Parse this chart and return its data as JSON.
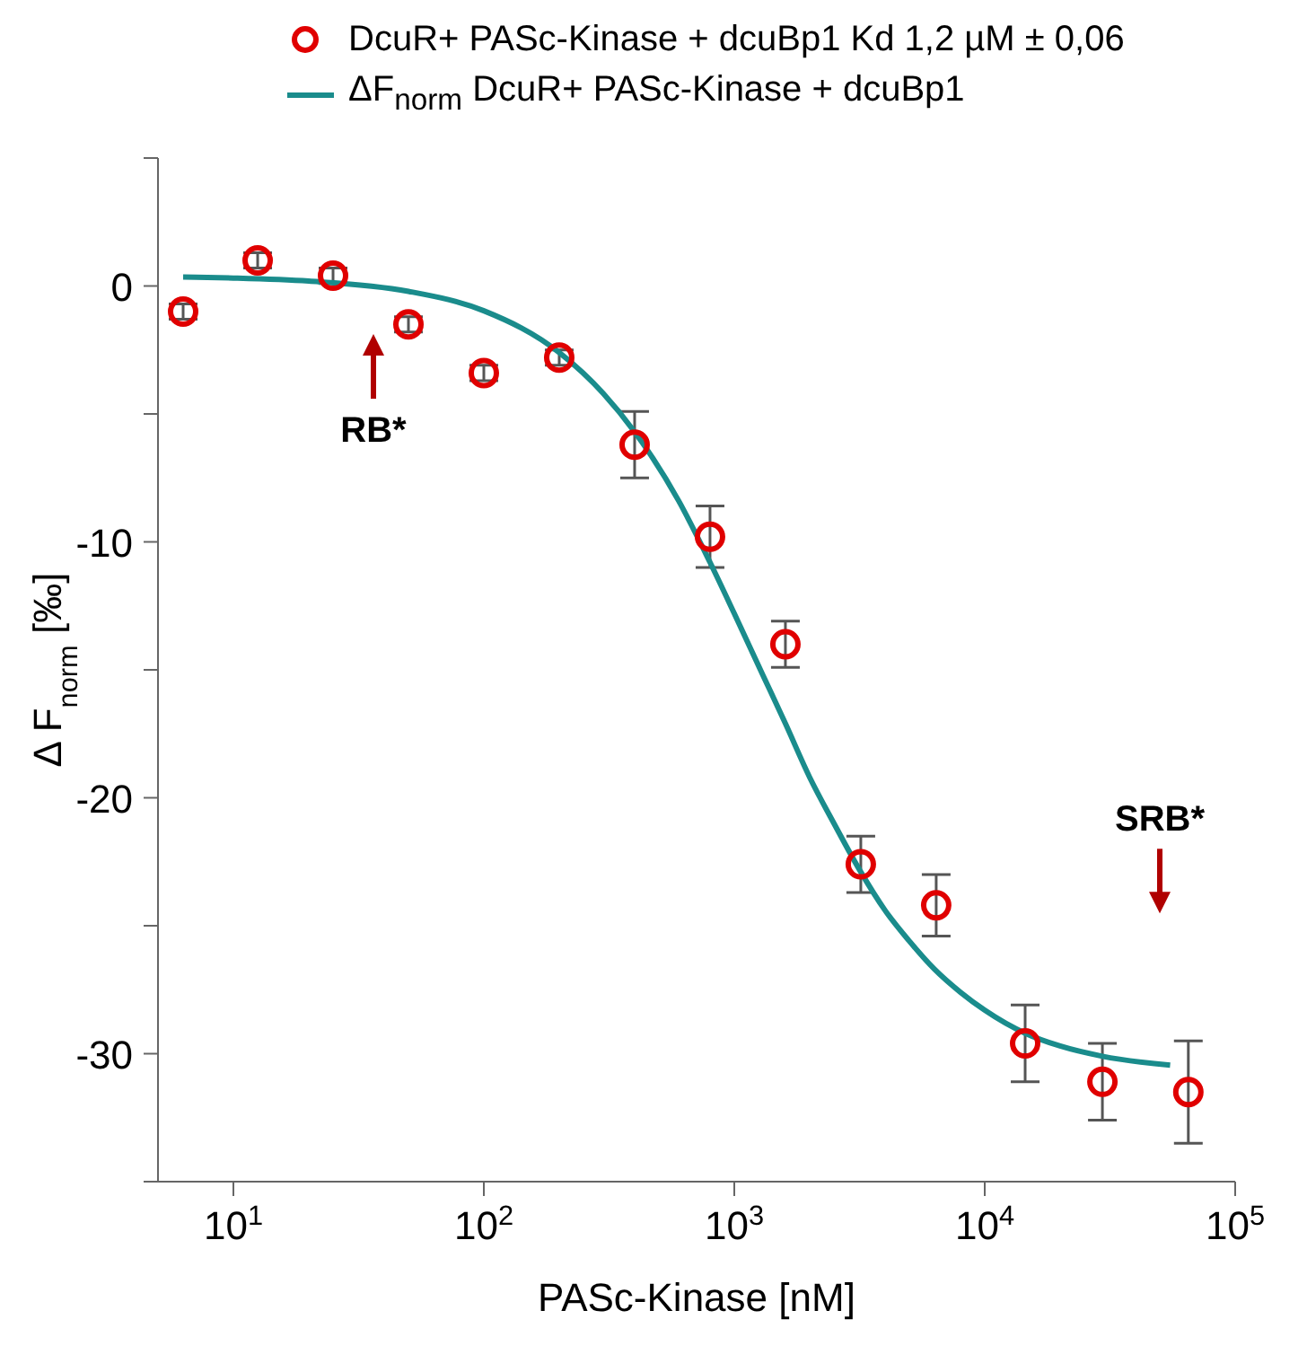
{
  "chart_data": {
    "type": "scatter",
    "xlabel": "PASc-Kinase [nM]",
    "ylabel": "Δ F$_{norm}$ [‰]",
    "log": "x",
    "legend": "top",
    "grid": false,
    "xlim": [
      5,
      100000
    ],
    "xticks": [
      {
        "value": 10,
        "label": "10$^{1}$"
      },
      {
        "value": 100,
        "label": "10$^{2}$"
      },
      {
        "value": 1000,
        "label": "10$^{3}$"
      },
      {
        "value": 10000,
        "label": "10$^{4}$"
      },
      {
        "value": 100000,
        "label": "10$^{5}$"
      }
    ],
    "ylim": [
      -35,
      5
    ],
    "yticks": [
      {
        "value": 5,
        "label": null
      },
      0,
      {
        "value": -5,
        "label": null
      },
      -10,
      {
        "value": -15,
        "label": null
      },
      -20,
      {
        "value": -25,
        "label": null
      },
      -30,
      {
        "value": -35,
        "label": null
      }
    ],
    "series": [
      {
        "name": "DcuR+ PASc-Kinase + dcuBp1  Kd 1,2 µM ± 0,06",
        "color": "#e00000",
        "marker": "circle",
        "x": [
          6.3,
          12.5,
          25,
          50,
          100,
          200,
          400,
          800,
          1600,
          3200,
          6400,
          14500,
          29500,
          65000
        ],
        "values": [
          -1.0,
          1.0,
          0.4,
          -1.5,
          -3.4,
          -2.8,
          -6.2,
          -9.8,
          -14.0,
          -22.6,
          -24.2,
          -29.6,
          -31.1,
          -31.5
        ],
        "errors": [
          0.3,
          0.3,
          0.3,
          0.3,
          0.3,
          0.3,
          1.3,
          1.2,
          0.9,
          1.1,
          1.2,
          1.5,
          1.5,
          2.0
        ]
      },
      {
        "type": "line",
        "name": "ΔF$_{norm}$ DcuR+ PASc-Kinase + dcuBp1",
        "color": "#1a8c8c",
        "x": [
          6.3,
          10,
          20,
          50,
          100,
          200,
          300,
          400,
          600,
          800,
          1000,
          1300,
          1600,
          2000,
          2500,
          3200,
          4000,
          5000,
          6300,
          8000,
          10000,
          14500,
          20000,
          29500,
          55000
        ],
        "values": [
          0.35,
          0.31,
          0.19,
          -0.21,
          -0.97,
          -2.6,
          -4.2,
          -5.7,
          -8.4,
          -10.8,
          -12.8,
          -15.2,
          -17.1,
          -19.2,
          -21.0,
          -22.9,
          -24.4,
          -25.6,
          -26.7,
          -27.6,
          -28.3,
          -29.2,
          -29.7,
          -30.1,
          -30.45
        ]
      }
    ],
    "annotations": [
      "RB*",
      "SRB*"
    ]
  }
}
